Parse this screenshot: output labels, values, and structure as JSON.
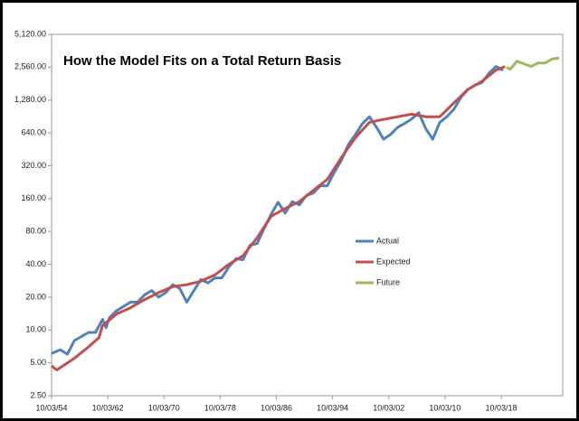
{
  "chart_data": {
    "type": "line",
    "title": "How the Model Fits on a Total Return Basis",
    "yscale": "log",
    "grid": false,
    "legend": "center",
    "xlim": [
      1954.75,
      2027.5
    ],
    "xticks": [
      {
        "value": 1954.75,
        "label": "10/03/54"
      },
      {
        "value": 1962.75,
        "label": "10/03/62"
      },
      {
        "value": 1970.75,
        "label": "10/03/70"
      },
      {
        "value": 1978.75,
        "label": "10/03/78"
      },
      {
        "value": 1986.75,
        "label": "10/03/86"
      },
      {
        "value": 1994.75,
        "label": "10/03/94"
      },
      {
        "value": 2002.75,
        "label": "10/03/02"
      },
      {
        "value": 2010.75,
        "label": "10/03/10"
      },
      {
        "value": 2018.75,
        "label": "10/03/18"
      }
    ],
    "ylim": [
      2.5,
      5120
    ],
    "yticks": [
      {
        "value": 2.5,
        "label": "2.50"
      },
      {
        "value": 5,
        "label": "5.00"
      },
      {
        "value": 10,
        "label": "10.00"
      },
      {
        "value": 20,
        "label": "20.00"
      },
      {
        "value": 40,
        "label": "40.00"
      },
      {
        "value": 80,
        "label": "80.00"
      },
      {
        "value": 160,
        "label": "160.00"
      },
      {
        "value": 320,
        "label": "320.00"
      },
      {
        "value": 640,
        "label": "640.00"
      },
      {
        "value": 1280,
        "label": "1,280.00"
      },
      {
        "value": 2560,
        "label": "2,560.00"
      },
      {
        "value": 5120,
        "label": "5,120.00"
      }
    ],
    "series": [
      {
        "name": "Actual",
        "color": "#4f81bd",
        "x": [
          1954.75,
          1956,
          1957,
          1958,
          1960,
          1961,
          1962,
          1962.5,
          1963,
          1964,
          1966,
          1967,
          1968,
          1969,
          1970,
          1971,
          1972,
          1973,
          1974,
          1975,
          1976,
          1977,
          1978,
          1979,
          1980,
          1981,
          1982,
          1983,
          1984,
          1985,
          1986,
          1987,
          1988,
          1989,
          1990,
          1991,
          1992,
          1993,
          1994,
          1995,
          1996,
          1997,
          1998,
          1999,
          2000,
          2001,
          2002,
          2003,
          2004,
          2005,
          2006,
          2007,
          2008,
          2009,
          2010,
          2011,
          2012,
          2013,
          2014,
          2015,
          2016,
          2017,
          2018,
          2019
        ],
        "values": [
          6.1,
          6.6,
          6.0,
          8.0,
          9.5,
          9.5,
          12.5,
          10.5,
          13,
          15,
          18,
          18,
          21,
          23,
          20,
          22,
          26,
          24,
          18,
          23,
          29,
          27,
          30,
          30,
          38,
          45,
          44,
          60,
          62,
          85,
          115,
          148,
          118,
          150,
          140,
          170,
          180,
          210,
          210,
          280,
          360,
          500,
          620,
          780,
          900,
          720,
          560,
          620,
          720,
          780,
          860,
          980,
          700,
          560,
          800,
          900,
          1050,
          1350,
          1600,
          1750,
          1850,
          2250,
          2600,
          2400
        ]
      },
      {
        "name": "Expected",
        "color": "#c0504d",
        "x": [
          1954.75,
          1955.5,
          1958,
          1960,
          1961.5,
          1962,
          1964,
          1966,
          1968,
          1970,
          1972,
          1974,
          1976,
          1978,
          1980,
          1982,
          1984,
          1986,
          1988,
          1990,
          1992,
          1994,
          1996,
          1998,
          2000,
          2002,
          2004,
          2006,
          2008,
          2010,
          2012,
          2014,
          2016,
          2018,
          2019.3
        ],
        "values": [
          4.7,
          4.3,
          5.5,
          7,
          8.5,
          11,
          14,
          16,
          19,
          22,
          25,
          26,
          28,
          32,
          40,
          48,
          70,
          110,
          130,
          150,
          190,
          240,
          380,
          580,
          800,
          850,
          900,
          950,
          900,
          900,
          1200,
          1600,
          1900,
          2400,
          2600
        ]
      },
      {
        "name": "Future",
        "color": "#9bbb59",
        "x": [
          2019.5,
          2020,
          2021,
          2022,
          2023,
          2024,
          2025,
          2026,
          2027
        ],
        "values": [
          2550,
          2450,
          2900,
          2750,
          2600,
          2800,
          2800,
          3050,
          3100
        ]
      }
    ]
  }
}
